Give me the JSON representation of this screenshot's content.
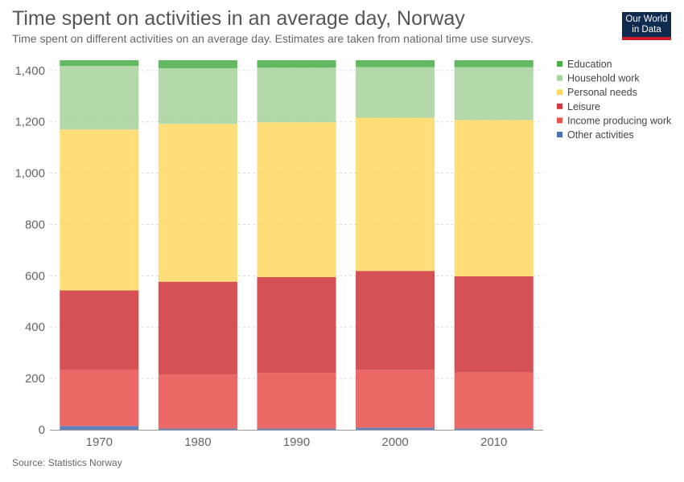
{
  "header": {
    "title": "Time spent on activities in an average day, Norway",
    "subtitle": "Time spent on different activities on an average day. Estimates are taken from national time use surveys."
  },
  "logo": {
    "line1": "Our World",
    "line2": "in Data"
  },
  "footer": {
    "source": "Source: Statistics Norway"
  },
  "chart_data": {
    "type": "bar",
    "stacked": true,
    "title": "Time spent on activities in an average day, Norway",
    "xlabel": "",
    "ylabel": "",
    "categories": [
      "1970",
      "1980",
      "1990",
      "2000",
      "2010"
    ],
    "ylim": [
      0,
      1440
    ],
    "yticks": [
      0,
      200,
      400,
      600,
      800,
      1000,
      1200,
      1400
    ],
    "ytick_labels": [
      "0",
      "200",
      "400",
      "600",
      "800",
      "1,000",
      "1,200",
      "1,400"
    ],
    "grid": "horizontal dashed",
    "legend_position": "right",
    "series": [
      {
        "name": "Other activities",
        "color": "#4c72b0",
        "values": [
          15,
          5,
          5,
          8,
          5
        ]
      },
      {
        "name": "Income producing work",
        "color": "#e8534f",
        "values": [
          218,
          210,
          217,
          226,
          218
        ]
      },
      {
        "name": "Leisure",
        "color": "#d0393e",
        "values": [
          310,
          362,
          373,
          385,
          375
        ]
      },
      {
        "name": "Personal needs",
        "color": "#ffd966",
        "values": [
          627,
          615,
          603,
          597,
          609
        ]
      },
      {
        "name": "Household work",
        "color": "#a9d39e",
        "values": [
          248,
          217,
          213,
          197,
          206
        ]
      },
      {
        "name": "Education",
        "color": "#4daf4a",
        "values": [
          22,
          31,
          29,
          27,
          27
        ]
      }
    ],
    "legend_order": [
      "Education",
      "Household work",
      "Personal needs",
      "Leisure",
      "Income producing work",
      "Other activities"
    ]
  }
}
